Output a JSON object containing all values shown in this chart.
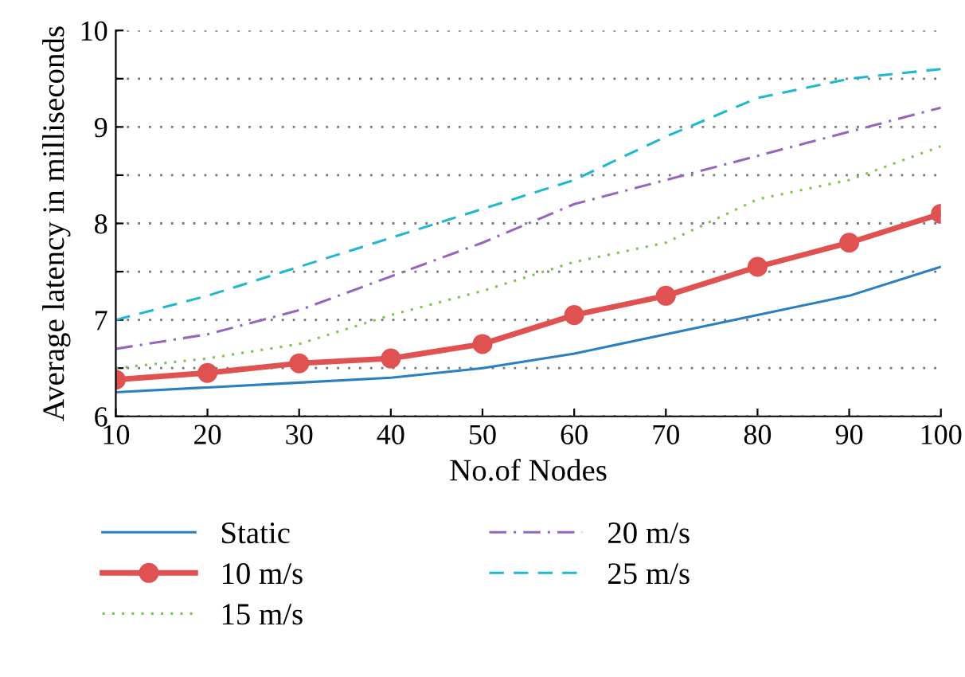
{
  "chart_data": {
    "type": "line",
    "xlabel": "No.of Nodes",
    "ylabel": "Average latency in milliseconds",
    "x": [
      10,
      20,
      30,
      40,
      50,
      60,
      70,
      80,
      90,
      100
    ],
    "series": [
      {
        "name": "Static",
        "color": "#2a7fc0",
        "line_style": "solid",
        "marker": "none",
        "values": [
          6.25,
          6.3,
          6.35,
          6.4,
          6.5,
          6.65,
          6.85,
          7.05,
          7.25,
          7.55
        ]
      },
      {
        "name": "10 m/s",
        "color": "#e05252",
        "line_style": "solid",
        "marker": "circle",
        "values": [
          6.38,
          6.45,
          6.55,
          6.6,
          6.75,
          7.05,
          7.25,
          7.55,
          7.8,
          8.1
        ]
      },
      {
        "name": "15 m/s",
        "color": "#7dc253",
        "line_style": "dotted",
        "marker": "none",
        "values": [
          6.5,
          6.6,
          6.75,
          7.05,
          7.3,
          7.6,
          7.8,
          8.25,
          8.45,
          8.8
        ]
      },
      {
        "name": "20 m/s",
        "color": "#9467bd",
        "line_style": "dashdot",
        "marker": "none",
        "values": [
          6.7,
          6.85,
          7.1,
          7.45,
          7.8,
          8.2,
          8.45,
          8.7,
          8.95,
          9.2
        ]
      },
      {
        "name": "25 m/s",
        "color": "#1fb8d0",
        "line_style": "dashed",
        "marker": "none",
        "values": [
          7.0,
          7.25,
          7.55,
          7.85,
          8.15,
          8.45,
          8.9,
          9.3,
          9.5,
          9.6
        ]
      }
    ],
    "xlim": [
      10,
      100
    ],
    "xticks": [
      10,
      20,
      30,
      40,
      50,
      60,
      70,
      80,
      90,
      100
    ],
    "ylim": [
      6,
      10
    ],
    "yticks": [
      6,
      {
        "value": 6.5,
        "label": null
      },
      7,
      {
        "value": 7.5,
        "label": null
      },
      8,
      {
        "value": 8.5,
        "label": null
      },
      9,
      {
        "value": 9.5,
        "label": null
      },
      10
    ],
    "grid": "y",
    "legend": "bottom"
  }
}
